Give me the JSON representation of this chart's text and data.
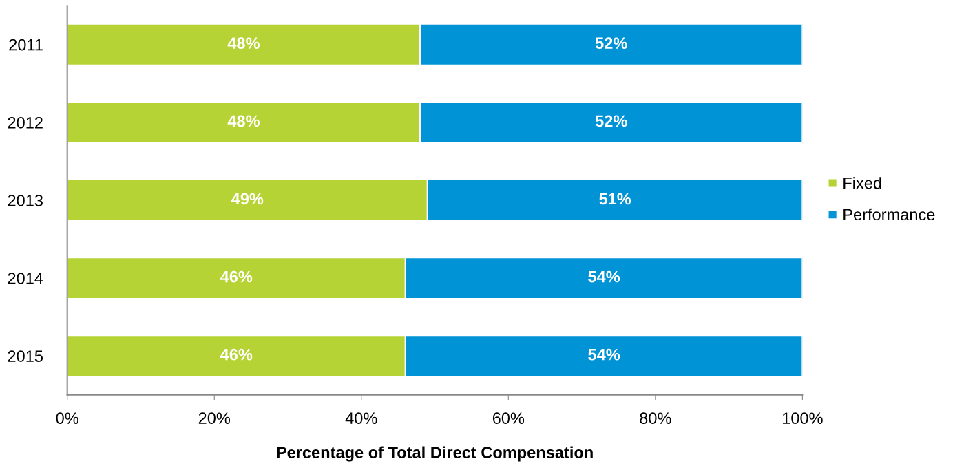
{
  "chart_data": {
    "type": "bar",
    "orientation": "horizontal",
    "stacked": true,
    "xlabel": "Percentage of Total Direct Compensation",
    "categories": [
      "2011",
      "2012",
      "2013",
      "2014",
      "2015"
    ],
    "series": [
      {
        "name": "Fixed",
        "color": "#b5d334",
        "values": [
          48,
          48,
          49,
          46,
          46
        ],
        "value_labels": [
          "48%",
          "48%",
          "49%",
          "46%",
          "46%"
        ]
      },
      {
        "name": "Performance",
        "color": "#0093d5",
        "values": [
          52,
          52,
          51,
          54,
          54
        ],
        "value_labels": [
          "52%",
          "52%",
          "51%",
          "54%",
          "54%"
        ]
      }
    ],
    "xlim": [
      0,
      100
    ],
    "xticks": [
      {
        "value": 0,
        "label": "0%"
      },
      {
        "value": 20,
        "label": "20%"
      },
      {
        "value": 40,
        "label": "40%"
      },
      {
        "value": 60,
        "label": "60%"
      },
      {
        "value": 80,
        "label": "80%"
      },
      {
        "value": 100,
        "label": "100%"
      }
    ],
    "grid": false,
    "legend": "right"
  }
}
